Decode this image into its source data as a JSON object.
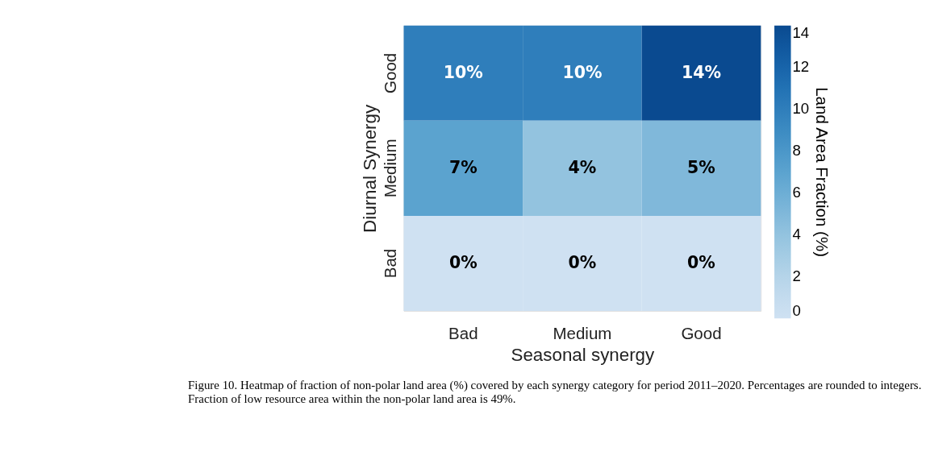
{
  "chart_data": {
    "type": "heatmap",
    "xlabel": "Seasonal synergy",
    "ylabel": "Diurnal Synergy",
    "clabel": "Land Area Fraction (%)",
    "categories": [
      "Bad",
      "Medium",
      "Good"
    ],
    "y_categories": [
      "Good",
      "Medium",
      "Bad"
    ],
    "cells": [
      [
        10,
        10,
        14
      ],
      [
        7,
        4,
        5
      ],
      [
        0,
        0,
        0
      ]
    ],
    "cell_labels": [
      [
        "10%",
        "10%",
        "14%"
      ],
      [
        "7%",
        "4%",
        "5%"
      ],
      [
        "0%",
        "0%",
        "0%"
      ]
    ],
    "clim": [
      0,
      14
    ],
    "cticks": [
      0,
      2,
      4,
      6,
      8,
      10,
      12,
      14
    ],
    "annotations": [
      "Figure 10. Heatmap of fraction of non-polar land area (%) covered by each synergy category for period 2011–2020. Percentages are rounded to integers. Fraction of low resource area within the non-polar land area is 49%."
    ]
  }
}
